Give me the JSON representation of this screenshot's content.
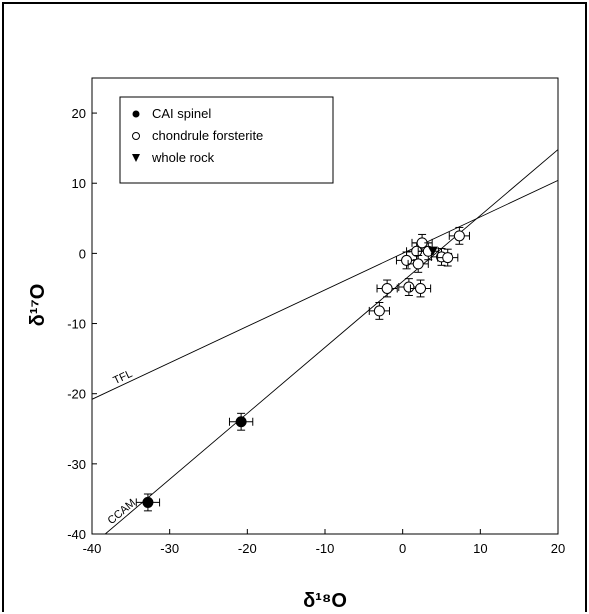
{
  "chart_data": {
    "type": "scatter",
    "title": "",
    "xlabel": "δ¹⁸O",
    "ylabel": "δ¹⁷O",
    "xlim": [
      -40,
      20
    ],
    "ylim": [
      -40,
      25
    ],
    "x_ticks": [
      -40,
      -30,
      -20,
      -10,
      0,
      10,
      20
    ],
    "y_ticks": [
      -40,
      -30,
      -20,
      -10,
      0,
      10,
      20
    ],
    "grid": false,
    "legend_position": "top-left",
    "legend": [
      {
        "label": "CAI spinel",
        "marker": "filled-circle"
      },
      {
        "label": "chondrule forsterite",
        "marker": "open-circle"
      },
      {
        "label": "whole rock",
        "marker": "filled-triangle-down"
      }
    ],
    "reference_lines": [
      {
        "name": "TFL",
        "slope": 0.52,
        "intercept": 0.0
      },
      {
        "name": "CCAM",
        "slope": 0.94,
        "intercept": -4.0
      }
    ],
    "series": [
      {
        "name": "CAI spinel",
        "marker": "filled-circle",
        "points": [
          {
            "x": -32.8,
            "y": -35.5,
            "xerr": 1.5,
            "yerr": 1.2
          },
          {
            "x": -20.8,
            "y": -24.0,
            "xerr": 1.5,
            "yerr": 1.2
          }
        ]
      },
      {
        "name": "chondrule forsterite",
        "marker": "open-circle",
        "points": [
          {
            "x": -3.0,
            "y": -8.2,
            "xerr": 1.3,
            "yerr": 1.2
          },
          {
            "x": -2.0,
            "y": -5.0,
            "xerr": 1.3,
            "yerr": 1.2
          },
          {
            "x": 0.8,
            "y": -4.8,
            "xerr": 1.3,
            "yerr": 1.2
          },
          {
            "x": 2.3,
            "y": -5.0,
            "xerr": 1.3,
            "yerr": 1.2
          },
          {
            "x": 0.5,
            "y": -1.0,
            "xerr": 1.3,
            "yerr": 1.2
          },
          {
            "x": 1.8,
            "y": 0.3,
            "xerr": 1.3,
            "yerr": 1.2
          },
          {
            "x": 2.5,
            "y": 1.5,
            "xerr": 1.3,
            "yerr": 1.2
          },
          {
            "x": 2.0,
            "y": -1.5,
            "xerr": 1.3,
            "yerr": 1.2
          },
          {
            "x": 3.3,
            "y": 0.3,
            "xerr": 1.3,
            "yerr": 1.2
          },
          {
            "x": 5.0,
            "y": -0.5,
            "xerr": 1.3,
            "yerr": 1.2
          },
          {
            "x": 5.8,
            "y": -0.6,
            "xerr": 1.3,
            "yerr": 1.2
          },
          {
            "x": 7.3,
            "y": 2.5,
            "xerr": 1.3,
            "yerr": 1.2
          }
        ]
      },
      {
        "name": "whole rock",
        "marker": "filled-triangle-down",
        "points": [
          {
            "x": 3.9,
            "y": 0.4
          }
        ]
      }
    ]
  }
}
